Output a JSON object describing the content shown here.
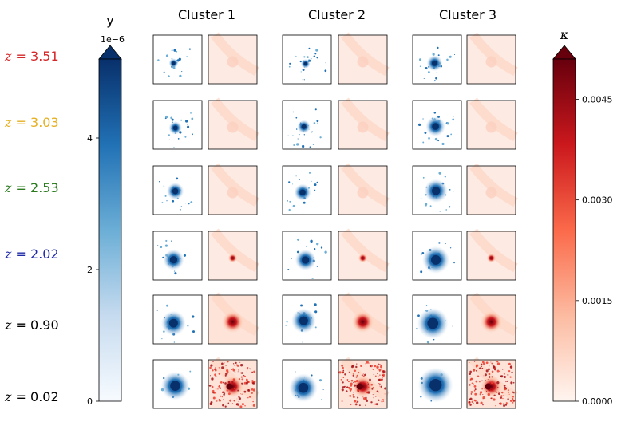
{
  "chart_data": {
    "type": "heatmap",
    "columns": [
      "Cluster 1",
      "Cluster 2",
      "Cluster 3"
    ],
    "rows": [
      {
        "label": "z = 3.51",
        "z": "3.51",
        "color": "#d62728"
      },
      {
        "label": "z = 3.03",
        "z": "3.03",
        "color": "#e6b022"
      },
      {
        "label": "z = 2.53",
        "z": "2.53",
        "color": "#2a7a1e"
      },
      {
        "label": "z = 2.02",
        "z": "2.02",
        "color": "#1f2aa8"
      },
      {
        "label": "z = 0.90",
        "z": "0.90",
        "color": "#000000"
      },
      {
        "label": "z = 0.02",
        "z": "0.02",
        "color": "#000000"
      }
    ],
    "maps_per_cluster": [
      "y",
      "κ"
    ],
    "colorbars": [
      {
        "name": "y",
        "label": "y",
        "cmap": "Blues",
        "offset_label": "1e−6",
        "range": [
          0,
          5.2
        ],
        "ticks": [
          0,
          2,
          4
        ],
        "tick_labels": [
          "0",
          "2",
          "4"
        ],
        "extend": "max"
      },
      {
        "name": "kappa",
        "label": "κ",
        "cmap": "Reds",
        "range": [
          0,
          0.0051
        ],
        "ticks": [
          0,
          0.0015,
          0.003,
          0.0045
        ],
        "tick_labels": [
          "0.0000",
          "0.0015",
          "0.0030",
          "0.0045"
        ],
        "extend": "max"
      }
    ]
  }
}
